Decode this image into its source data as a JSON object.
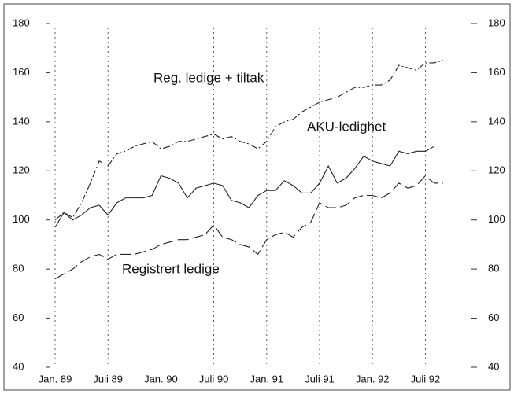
{
  "chart_data": {
    "type": "line",
    "categories": [
      "Jan. 89",
      null,
      null,
      null,
      null,
      null,
      "Juli 89",
      null,
      null,
      null,
      null,
      null,
      "Jan. 90",
      null,
      null,
      null,
      null,
      null,
      "Juli 90",
      null,
      null,
      null,
      null,
      null,
      "Jan. 91",
      null,
      null,
      null,
      null,
      null,
      "Juli 91",
      null,
      null,
      null,
      null,
      null,
      "Jan. 92",
      null,
      null,
      null,
      null,
      null,
      "Juli 92",
      null,
      null
    ],
    "series": [
      {
        "name": "Reg. ledige + tiltak",
        "color": "#222222",
        "dash": "9 3 2 3",
        "values": [
          100,
          103,
          101,
          107,
          115,
          124,
          122,
          127,
          128,
          130,
          131,
          132,
          129,
          130,
          132,
          132,
          133,
          134,
          135,
          133,
          134,
          132,
          131,
          129,
          132,
          138,
          140,
          141,
          144,
          146,
          148,
          149,
          150,
          152,
          154,
          154,
          155,
          155,
          157,
          163,
          162,
          161,
          164,
          164,
          165
        ]
      },
      {
        "name": "AKU-ledighet",
        "color": "#222222",
        "dash": "none",
        "values": [
          97,
          103,
          100,
          102,
          105,
          106,
          102,
          107,
          109,
          109,
          109,
          110,
          118,
          117,
          115,
          109,
          113,
          114,
          115,
          114,
          108,
          107,
          105,
          110,
          112,
          112,
          116,
          114,
          111,
          111,
          115,
          122,
          115,
          117,
          121,
          126,
          124,
          123,
          122,
          128,
          127,
          128,
          128,
          130,
          null
        ]
      },
      {
        "name": "Registrert ledige",
        "color": "#222222",
        "dash": "14 5",
        "values": [
          76,
          78,
          80,
          83,
          85,
          86,
          84,
          86,
          86,
          86,
          87,
          88,
          90,
          91,
          92,
          92,
          93,
          94,
          98,
          93,
          92,
          90,
          89,
          86,
          92,
          94,
          95,
          93,
          97,
          99,
          107,
          105,
          105,
          106,
          109,
          110,
          110,
          109,
          111,
          115,
          113,
          114,
          118,
          115,
          115
        ]
      }
    ],
    "annotations": [
      "Reg. ledige + tiltak",
      "AKU-ledighet",
      "Registrert ledige"
    ],
    "ylim": [
      40,
      180
    ],
    "yticks": [
      40,
      60,
      80,
      100,
      120,
      140,
      160,
      180
    ],
    "y2lim": [
      40,
      180
    ],
    "y2ticks": [
      40,
      60,
      80,
      100,
      120,
      140,
      160,
      180
    ]
  }
}
